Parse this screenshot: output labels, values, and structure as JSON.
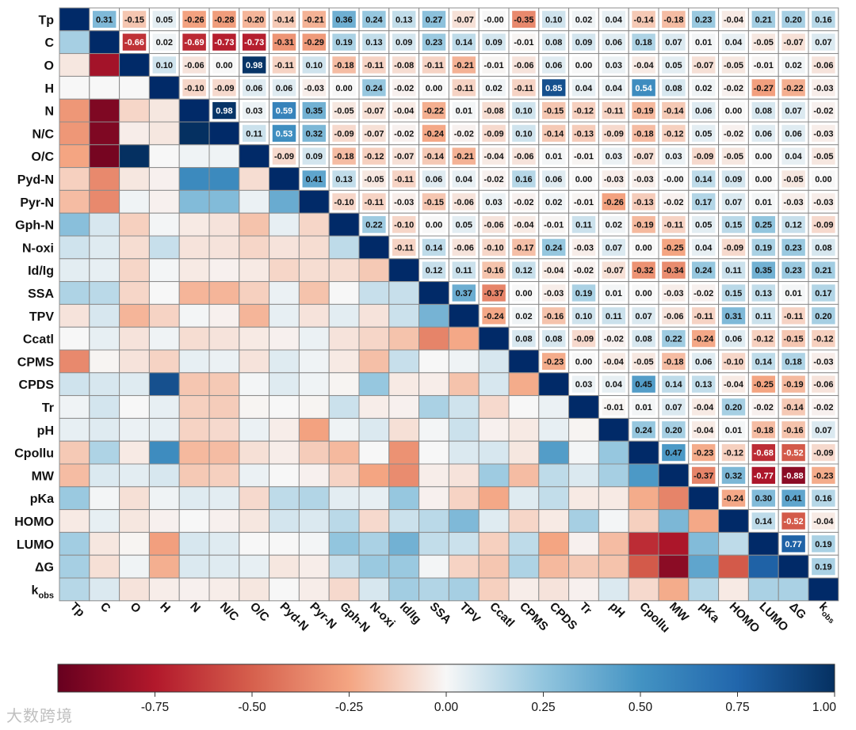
{
  "chart_data": {
    "type": "heatmap",
    "title": "",
    "labels": [
      "Tp",
      "C",
      "O",
      "H",
      "N",
      "N/C",
      "O/C",
      "Pyd-N",
      "Pyr-N",
      "Gph-N",
      "N-oxi",
      "Id/Ig",
      "SSA",
      "TPV",
      "Ccatl",
      "CPMS",
      "CPDS",
      "Tr",
      "pH",
      "Cpollu",
      "MW",
      "pKa",
      "HOMO",
      "LUMO",
      "ΔG",
      "kobs"
    ],
    "upper": [
      [
        0.31,
        -0.15,
        0.05,
        -0.26,
        -0.28,
        -0.2,
        -0.14,
        -0.21,
        0.36,
        0.24,
        0.13,
        0.27,
        -0.07,
        -0.0,
        -0.35,
        0.1,
        0.02,
        0.04,
        -0.14,
        -0.18,
        0.23,
        -0.04,
        0.21,
        0.2,
        0.16
      ],
      [
        -0.66,
        0.02,
        -0.69,
        -0.73,
        -0.73,
        -0.31,
        -0.29,
        0.19,
        0.13,
        0.09,
        0.23,
        0.14,
        0.09,
        -0.01,
        0.08,
        0.09,
        0.06,
        0.18,
        0.07,
        0.01,
        0.04,
        -0.05,
        -0.07,
        0.07
      ],
      [
        0.1,
        -0.06,
        0.0,
        0.98,
        -0.11,
        0.1,
        -0.18,
        -0.11,
        -0.08,
        -0.11,
        -0.21,
        -0.01,
        -0.06,
        0.06,
        0.0,
        0.03,
        -0.04,
        0.05,
        -0.07,
        -0.05,
        -0.01,
        0.02,
        -0.06
      ],
      [
        -0.1,
        -0.09,
        0.06,
        0.06,
        -0.03,
        0.0,
        0.24,
        -0.02,
        0.0,
        -0.11,
        0.02,
        -0.11,
        0.85,
        0.04,
        0.04,
        0.54,
        0.08,
        0.02,
        -0.02,
        -0.27,
        -0.22,
        -0.03
      ],
      [
        0.98,
        0.03,
        0.59,
        0.35,
        -0.05,
        -0.07,
        -0.04,
        -0.22,
        0.01,
        -0.08,
        0.1,
        -0.15,
        -0.12,
        -0.11,
        -0.19,
        -0.14,
        0.06,
        0.0,
        0.08,
        0.07,
        -0.02
      ],
      [
        0.11,
        0.53,
        0.32,
        -0.09,
        -0.07,
        -0.02,
        -0.24,
        -0.02,
        -0.09,
        0.1,
        -0.14,
        -0.13,
        -0.09,
        -0.18,
        -0.12,
        0.05,
        -0.02,
        0.06,
        0.06,
        -0.03
      ],
      [
        -0.09,
        0.09,
        -0.18,
        -0.12,
        -0.07,
        -0.14,
        -0.21,
        -0.04,
        -0.06,
        0.01,
        -0.01,
        0.03,
        -0.07,
        0.03,
        -0.09,
        -0.05,
        0.0,
        0.04,
        -0.05
      ],
      [
        0.41,
        0.13,
        -0.05,
        -0.11,
        0.06,
        0.04,
        -0.02,
        0.16,
        0.06,
        0.0,
        -0.03,
        -0.03,
        -0.0,
        0.14,
        0.09,
        0.0,
        -0.05,
        0.0
      ],
      [
        -0.1,
        -0.11,
        -0.03,
        -0.15,
        -0.06,
        0.03,
        -0.02,
        0.02,
        -0.01,
        -0.26,
        -0.13,
        -0.02,
        0.17,
        0.07,
        0.01,
        -0.03,
        -0.03
      ],
      [
        0.22,
        -0.1,
        0.0,
        0.05,
        -0.06,
        -0.04,
        -0.01,
        0.11,
        0.02,
        -0.19,
        -0.11,
        0.05,
        0.15,
        0.25,
        0.12,
        -0.09
      ],
      [
        -0.11,
        0.14,
        -0.06,
        -0.1,
        -0.17,
        0.24,
        -0.03,
        0.07,
        0.0,
        -0.25,
        0.04,
        -0.09,
        0.19,
        0.23,
        0.08
      ],
      [
        0.12,
        0.11,
        -0.16,
        0.12,
        -0.04,
        -0.02,
        -0.07,
        -0.32,
        -0.34,
        0.24,
        0.11,
        0.35,
        0.23,
        0.21
      ],
      [
        0.37,
        -0.37,
        0.0,
        -0.03,
        0.19,
        0.01,
        0.0,
        -0.03,
        -0.02,
        0.15,
        0.13,
        0.01,
        0.17
      ],
      [
        -0.24,
        0.02,
        -0.16,
        0.1,
        0.11,
        0.07,
        -0.06,
        -0.11,
        0.31,
        0.11,
        -0.11,
        0.2
      ],
      [
        0.08,
        0.08,
        -0.09,
        -0.02,
        0.08,
        0.22,
        -0.24,
        0.06,
        -0.12,
        -0.15,
        -0.12
      ],
      [
        -0.23,
        0.0,
        -0.04,
        -0.05,
        -0.18,
        0.06,
        -0.1,
        0.14,
        0.18,
        -0.03
      ],
      [
        0.03,
        0.04,
        0.45,
        0.14,
        0.13,
        -0.04,
        -0.25,
        -0.19,
        -0.06
      ],
      [
        -0.01,
        0.01,
        0.07,
        -0.04,
        0.2,
        -0.02,
        -0.14,
        -0.02
      ],
      [
        0.24,
        0.2,
        -0.04,
        0.01,
        -0.18,
        -0.16,
        0.07
      ],
      [
        0.47,
        -0.23,
        -0.12,
        -0.68,
        -0.52,
        -0.09
      ],
      [
        -0.37,
        0.32,
        -0.77,
        -0.88,
        -0.23
      ],
      [
        -0.24,
        0.3,
        0.41,
        0.16
      ],
      [
        0.14,
        -0.52,
        -0.04
      ],
      [
        0.77,
        0.19
      ],
      [
        0.19
      ],
      []
    ],
    "lower": [
      [],
      [
        0.2
      ],
      [
        -0.05,
        -0.8
      ],
      [
        0.0,
        0.0,
        0.0
      ],
      [
        -0.3,
        -0.92,
        -0.1,
        -0.05
      ],
      [
        -0.3,
        -0.92,
        -0.03,
        -0.05,
        1.0
      ],
      [
        -0.25,
        -0.95,
        1.0,
        0.0,
        0.02,
        0.02
      ],
      [
        -0.12,
        -0.35,
        -0.05,
        -0.02,
        0.55,
        0.55,
        -0.08
      ],
      [
        -0.18,
        -0.35,
        0.02,
        -0.02,
        0.3,
        0.3,
        0.03,
        0.38
      ],
      [
        0.28,
        0.08,
        -0.12,
        0.01,
        -0.04,
        -0.06,
        -0.16,
        0.04,
        -0.1
      ],
      [
        0.1,
        0.06,
        -0.08,
        0.12,
        -0.06,
        -0.06,
        -0.1,
        -0.06,
        -0.08,
        0.14
      ],
      [
        0.05,
        0.04,
        -0.1,
        0.01,
        -0.04,
        -0.02,
        -0.04,
        -0.1,
        -0.08,
        -0.08,
        -0.14
      ],
      [
        0.18,
        0.15,
        -0.1,
        0.0,
        -0.2,
        -0.2,
        -0.12,
        0.03,
        -0.16,
        0.0,
        0.12,
        0.12
      ],
      [
        -0.06,
        0.08,
        -0.2,
        -0.11,
        0.01,
        -0.02,
        -0.2,
        0.04,
        -0.06,
        0.05,
        -0.06,
        0.11,
        0.34
      ],
      [
        0.0,
        0.04,
        -0.06,
        0.02,
        -0.08,
        -0.06,
        -0.04,
        -0.02,
        0.03,
        -0.06,
        -0.1,
        -0.16,
        -0.37,
        -0.24
      ],
      [
        -0.35,
        -0.01,
        -0.06,
        -0.11,
        0.04,
        0.03,
        -0.06,
        0.06,
        0.02,
        -0.04,
        -0.17,
        0.12,
        0.0,
        0.02,
        0.08
      ],
      [
        0.1,
        0.08,
        0.06,
        0.85,
        -0.15,
        -0.14,
        0.01,
        0.06,
        0.02,
        -0.01,
        0.24,
        -0.04,
        -0.03,
        -0.16,
        0.08,
        -0.23
      ],
      [
        0.02,
        0.09,
        0.0,
        0.04,
        -0.12,
        -0.13,
        -0.01,
        0.0,
        -0.01,
        0.11,
        -0.03,
        -0.02,
        0.19,
        0.1,
        -0.09,
        0.0,
        0.03
      ],
      [
        0.04,
        0.06,
        0.03,
        0.04,
        -0.11,
        -0.09,
        0.03,
        -0.03,
        -0.26,
        0.02,
        0.07,
        -0.07,
        0.01,
        0.11,
        -0.02,
        -0.04,
        0.04,
        -0.01
      ],
      [
        -0.14,
        0.18,
        -0.04,
        0.54,
        -0.19,
        -0.18,
        -0.07,
        -0.03,
        -0.13,
        -0.19,
        0.0,
        -0.32,
        0.0,
        0.07,
        0.08,
        -0.05,
        0.45,
        0.01,
        0.24
      ],
      [
        -0.18,
        0.07,
        0.05,
        0.08,
        -0.14,
        -0.12,
        0.03,
        -0.0,
        -0.02,
        -0.11,
        -0.25,
        -0.34,
        -0.03,
        -0.06,
        0.22,
        -0.18,
        0.14,
        0.07,
        0.2,
        0.47
      ],
      [
        0.23,
        0.01,
        -0.07,
        0.02,
        0.06,
        0.05,
        -0.09,
        0.14,
        0.17,
        0.05,
        0.04,
        0.24,
        -0.02,
        -0.11,
        -0.24,
        0.06,
        0.13,
        -0.04,
        -0.04,
        -0.23,
        -0.37
      ],
      [
        -0.04,
        0.04,
        -0.05,
        -0.02,
        0.0,
        -0.02,
        -0.05,
        0.09,
        0.07,
        0.15,
        -0.09,
        0.11,
        0.15,
        0.31,
        0.06,
        -0.1,
        -0.04,
        0.2,
        0.01,
        -0.12,
        0.32,
        -0.24
      ],
      [
        0.21,
        -0.05,
        -0.01,
        -0.27,
        0.08,
        0.06,
        0.0,
        0.0,
        0.01,
        0.25,
        0.19,
        0.35,
        0.13,
        0.11,
        -0.12,
        0.14,
        -0.25,
        -0.02,
        -0.18,
        -0.68,
        -0.77,
        0.3,
        0.14
      ],
      [
        0.2,
        -0.07,
        0.02,
        -0.22,
        0.07,
        0.06,
        0.04,
        -0.05,
        -0.03,
        0.12,
        0.23,
        0.23,
        0.01,
        -0.11,
        -0.15,
        0.18,
        -0.19,
        -0.14,
        -0.16,
        -0.52,
        -0.88,
        0.41,
        -0.52,
        0.77
      ],
      [
        0.16,
        0.07,
        -0.06,
        -0.03,
        -0.02,
        -0.03,
        -0.05,
        0.0,
        -0.03,
        -0.09,
        0.08,
        0.21,
        0.17,
        0.2,
        -0.12,
        -0.03,
        -0.06,
        -0.02,
        0.07,
        -0.09,
        -0.23,
        0.16,
        -0.04,
        0.19,
        0.19
      ]
    ],
    "colorbar": {
      "min": -1.0,
      "max": 1.0,
      "ticks": [
        "-0.75",
        "-0.50",
        "-0.25",
        "0.00",
        "0.25",
        "0.50",
        "0.75",
        "1.00"
      ]
    },
    "colormap": "RdBu"
  },
  "watermark": "大数跨境"
}
